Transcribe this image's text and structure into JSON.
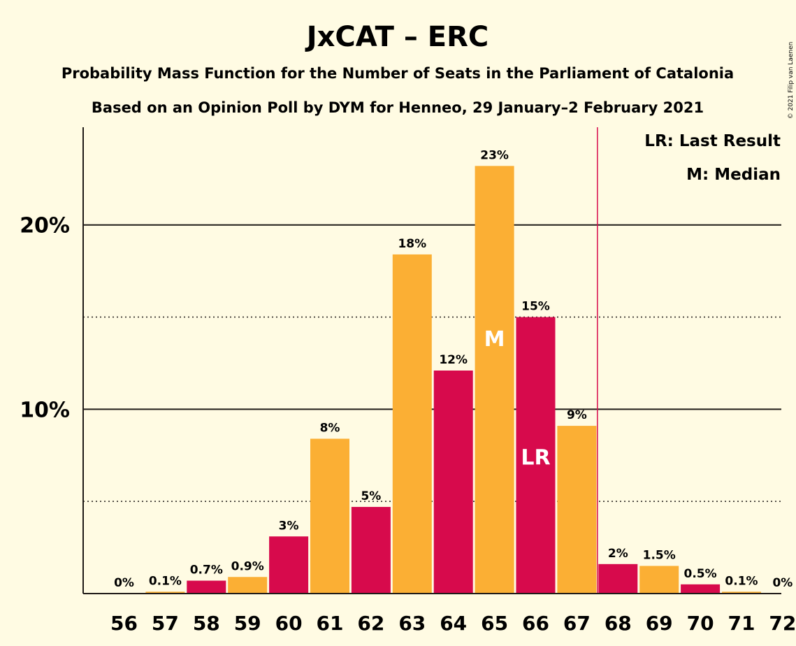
{
  "chart_data": {
    "type": "bar",
    "title": "JxCAT – ERC",
    "subtitle": "Probability Mass Function for the Number of Seats in the Parliament of Catalonia",
    "subtitle2": "Based on an Opinion Poll by DYM for Henneo, 29 January–2 February 2021",
    "copyright": "© 2021 Filip van Laenen",
    "categories": [
      "56",
      "57",
      "58",
      "59",
      "60",
      "61",
      "62",
      "63",
      "64",
      "65",
      "66",
      "67",
      "68",
      "69",
      "70",
      "71",
      "72"
    ],
    "values": [
      0,
      0.1,
      0.7,
      0.9,
      3.1,
      8.4,
      4.7,
      18.4,
      12.1,
      23.2,
      15.0,
      9.1,
      1.6,
      1.5,
      0.5,
      0.1,
      0
    ],
    "data_labels": [
      "0%",
      "0.1%",
      "0.7%",
      "0.9%",
      "3%",
      "8%",
      "5%",
      "18%",
      "12%",
      "23%",
      "15%",
      "9%",
      "2%",
      "1.5%",
      "0.5%",
      "0.1%",
      "0%"
    ],
    "y_ticks": [
      {
        "value": 10,
        "label": "10%"
      },
      {
        "value": 20,
        "label": "20%"
      }
    ],
    "dotted_lines": [
      5,
      15
    ],
    "ylim": [
      0,
      25.3
    ],
    "last_result_seat": 66,
    "median_seat": 65,
    "majority_line_after_seat": 67,
    "markers": {
      "last_result": "LR",
      "median": "M"
    },
    "legend": {
      "last_result": "LR: Last Result",
      "median": "M: Median",
      "placement": "top-right"
    },
    "colors": {
      "background": "#fffbe3",
      "bar_even": "#d70a4c",
      "bar_odd": "#fbaf34",
      "majority_line": "#d70a4c",
      "text": "#1f1a17"
    }
  }
}
